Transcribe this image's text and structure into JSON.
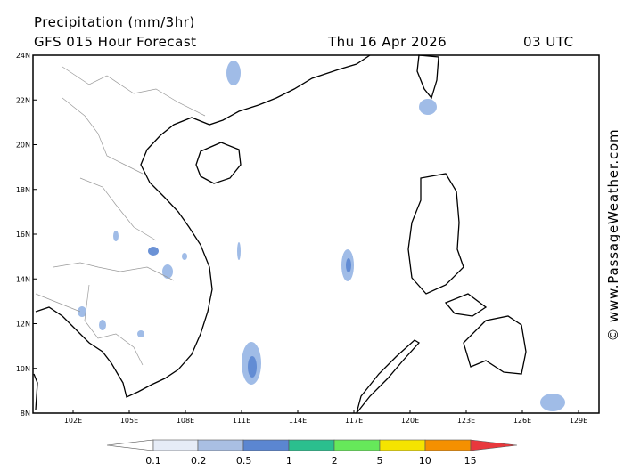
{
  "header": {
    "title": "Precipitation (mm/3hr)",
    "subtitle": "GFS 015 Hour Forecast",
    "date": "Thu 16 Apr 2026",
    "time": "03 UTC"
  },
  "map": {
    "lat_labels": [
      "24N",
      "22N",
      "20N",
      "18N",
      "16N",
      "14N",
      "12N",
      "10N",
      "8N"
    ],
    "lon_labels": [
      "102E",
      "105E",
      "108E",
      "111E",
      "114E",
      "117E",
      "120E",
      "123E",
      "126E",
      "129E"
    ]
  },
  "colorbar": {
    "labels": [
      "0.1",
      "0.2",
      "0.5",
      "1",
      "2",
      "5",
      "10",
      "15"
    ]
  },
  "watermark": "© www.PassageWeather.com"
}
